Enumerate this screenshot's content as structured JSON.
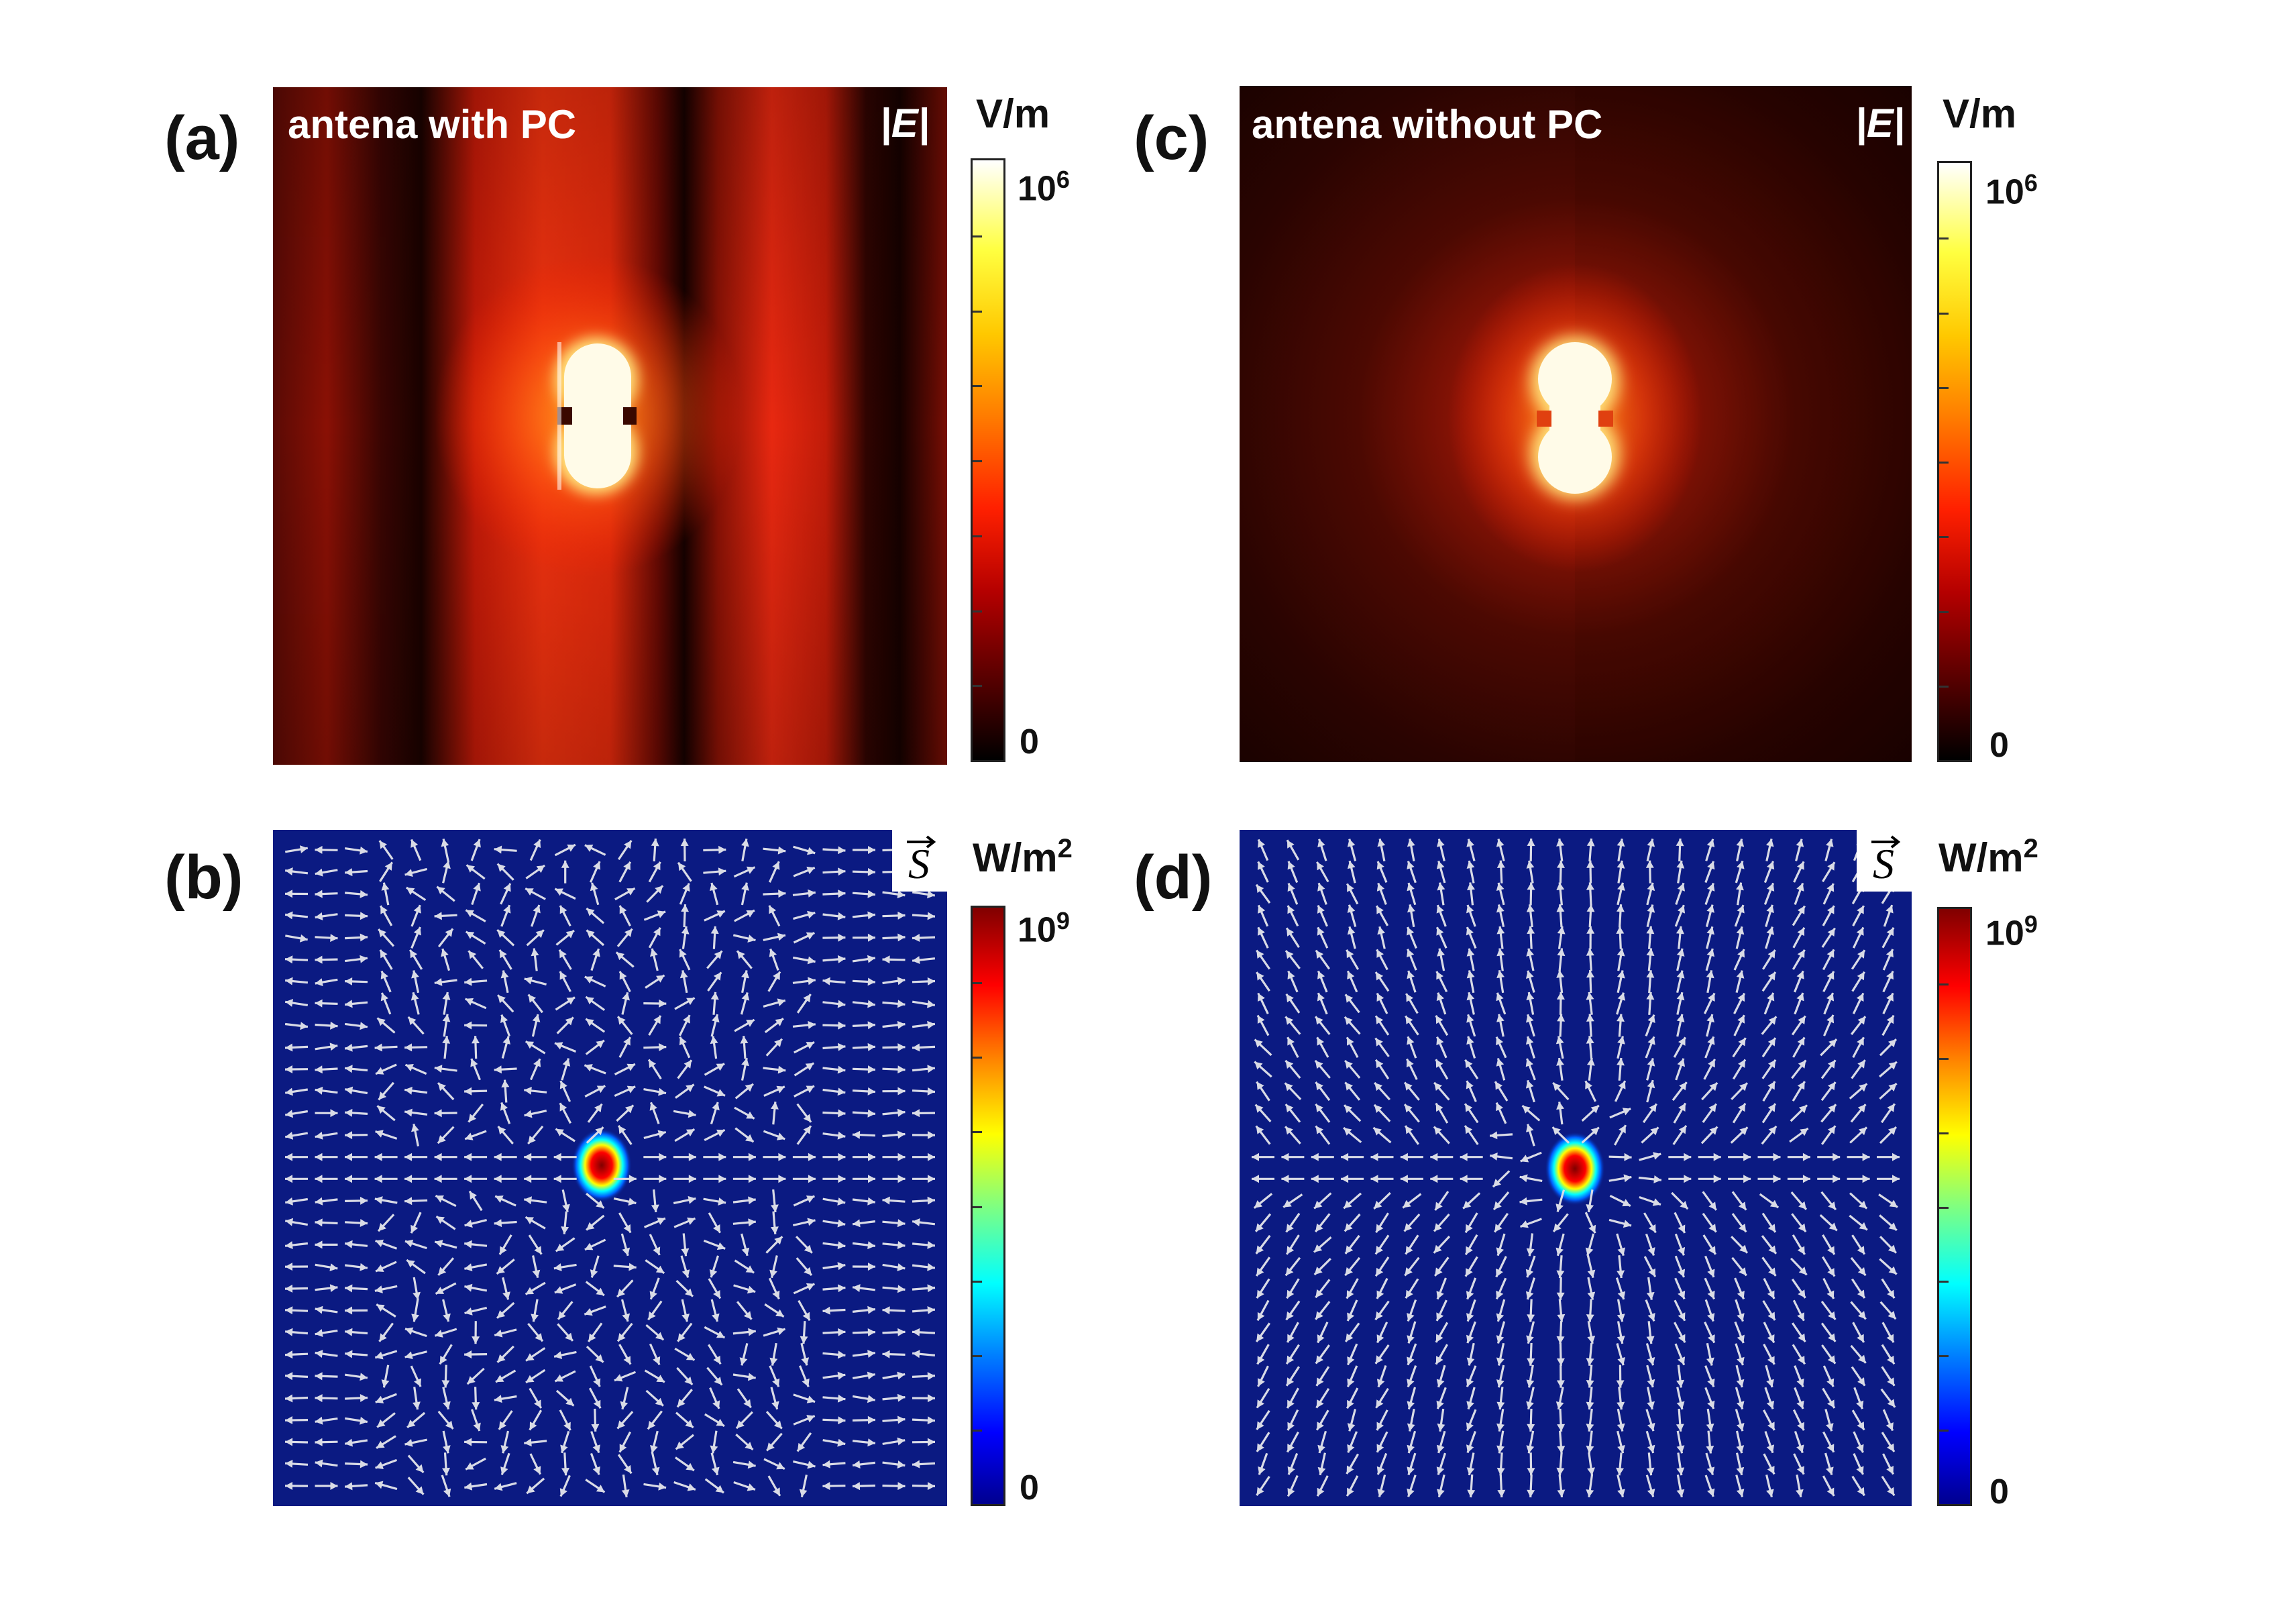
{
  "panels": {
    "a": {
      "letter": "(a)",
      "title": "antena with PC",
      "quantity": "|E|"
    },
    "b": {
      "letter": "(b)"
    },
    "c": {
      "letter": "(c)",
      "title": "antena without PC",
      "quantity": "|E|"
    },
    "d": {
      "letter": "(d)"
    }
  },
  "colorbars": {
    "e_field": {
      "unit": "V/m",
      "max_base": "10",
      "max_exp": "6",
      "min": "0",
      "colormap": [
        "#000000",
        "#5a0000",
        "#b40000",
        "#ff2000",
        "#ff7a00",
        "#ffc800",
        "#ffff40",
        "#ffffff"
      ]
    },
    "poynting": {
      "unit_base": "W/m",
      "unit_exp": "2",
      "max_base": "10",
      "max_exp": "9",
      "min": "0",
      "colormap": [
        "#00008f",
        "#0000ff",
        "#0080ff",
        "#00ffff",
        "#80ff80",
        "#ffff00",
        "#ff8000",
        "#ff0000",
        "#800000"
      ]
    }
  },
  "colors": {
    "background_vector_map": "#0b1a82",
    "arrow": "#d9dbe6",
    "hotspot_core": "#fffbe8"
  }
}
